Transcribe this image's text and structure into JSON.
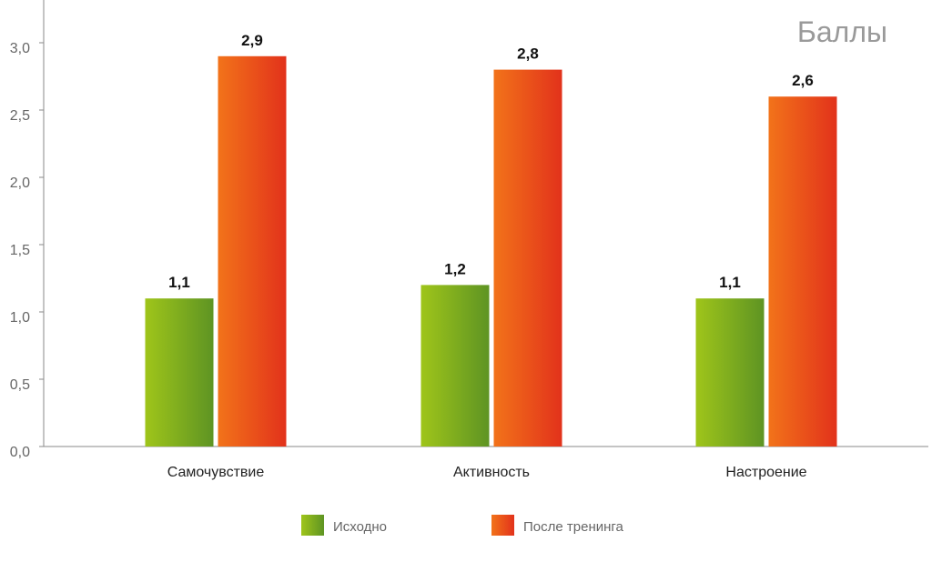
{
  "chart_data": {
    "type": "bar",
    "categories": [
      "Самочувствие",
      "Активность",
      "Настроение"
    ],
    "series": [
      {
        "name": "Исходно",
        "values": [
          1.1,
          1.2,
          1.1
        ],
        "value_labels": [
          "1,1",
          "1,2",
          "1,1"
        ]
      },
      {
        "name": "После тренинга",
        "values": [
          2.9,
          2.8,
          2.6
        ],
        "value_labels": [
          "2,9",
          "2,8",
          "2,6"
        ]
      }
    ],
    "unit_label": "Баллы",
    "ylim": [
      0,
      3
    ],
    "yticks": [
      0,
      0.5,
      1.0,
      1.5,
      2.0,
      2.5,
      3.0
    ],
    "ytick_labels": [
      "0,0",
      "0,5",
      "1,0",
      "1,5",
      "2,0",
      "2,5",
      "3,0"
    ],
    "legend_position": "bottom",
    "grid": false
  },
  "colors": {
    "series_0_light": "#9fc51a",
    "series_0_dark": "#5e9423",
    "series_1_light": "#f2731a",
    "series_1_dark": "#e2321b",
    "axis": "#8a8a8a",
    "tick_text": "#666666"
  }
}
